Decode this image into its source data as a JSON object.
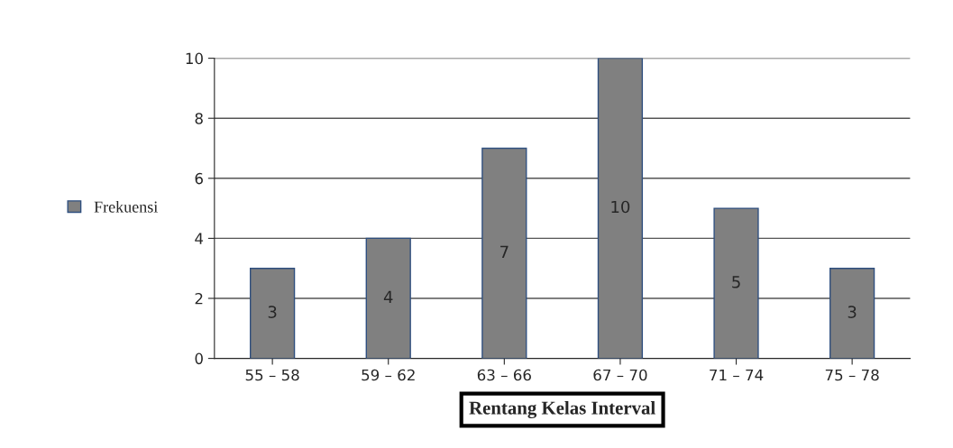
{
  "chart_data": {
    "type": "bar",
    "xlabel": "Rentang Kelas Interval",
    "categories": [
      "55 – 58",
      "59 – 62",
      "63 – 66",
      "67 – 70",
      "71 – 74",
      "75 – 78"
    ],
    "series": [
      {
        "name": "Frekuensi",
        "color": "#808080",
        "values": [
          3,
          4,
          7,
          10,
          5,
          3
        ]
      }
    ],
    "ylim": [
      0,
      10
    ],
    "yticks": [
      0,
      2,
      4,
      6,
      8,
      10
    ],
    "grid": "y",
    "legend": "left",
    "data_labels": true
  }
}
